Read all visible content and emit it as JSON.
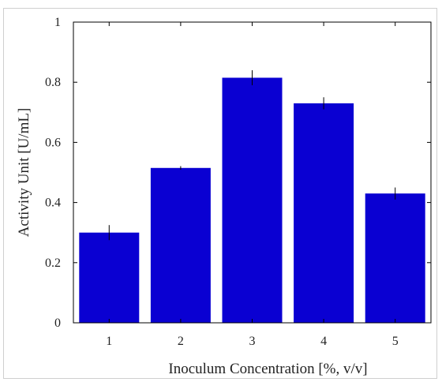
{
  "chart_data": {
    "type": "bar",
    "title": "",
    "xlabel": "Inoculum Concentration [%, v/v]",
    "ylabel": "Activity Unit [U/mL]",
    "categories": [
      "1",
      "2",
      "3",
      "4",
      "5"
    ],
    "values": [
      0.3,
      0.515,
      0.815,
      0.73,
      0.43
    ],
    "errors": [
      0.025,
      0.006,
      0.025,
      0.02,
      0.02
    ],
    "ylim": [
      0,
      1
    ],
    "yticks": [
      0,
      0.2,
      0.4,
      0.6,
      0.8,
      1
    ],
    "ytick_labels": [
      "0",
      "0.2",
      "0.4",
      "0.6",
      "0.8",
      "1"
    ],
    "bar_color": "#0a00d2",
    "error_color": "#000000",
    "grid": false,
    "legend": "none"
  }
}
